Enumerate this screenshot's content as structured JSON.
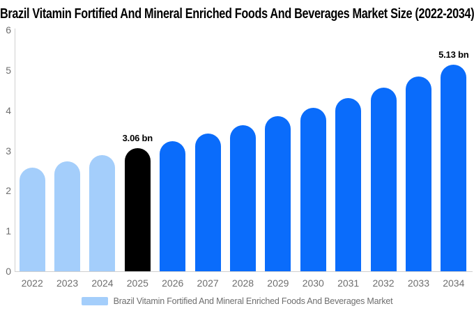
{
  "chart": {
    "title": "Brazil Vitamin Fortified And Mineral Enriched Foods And Beverages Market Size (2022-2034)"
  },
  "legend": {
    "label": "Brazil Vitamin Fortified And Mineral Enriched Foods And Beverages Market",
    "swatch_color": "#A4CEFB"
  },
  "chart_data": {
    "type": "bar",
    "title": "Brazil Vitamin Fortified And Mineral Enriched Foods And Beverages Market Size (2022-2034)",
    "categories": [
      "2022",
      "2023",
      "2024",
      "2025",
      "2026",
      "2027",
      "2028",
      "2029",
      "2030",
      "2031",
      "2032",
      "2033",
      "2034"
    ],
    "values": [
      2.58,
      2.73,
      2.89,
      3.06,
      3.24,
      3.43,
      3.63,
      3.85,
      4.07,
      4.31,
      4.57,
      4.84,
      5.13
    ],
    "unit": "bn",
    "xlabel": "",
    "ylabel": "",
    "ylim": [
      0,
      6
    ],
    "yticks": [
      0,
      1,
      2,
      3,
      4,
      5,
      6
    ],
    "grid": false,
    "legend_position": "bottom",
    "series_name": "Brazil Vitamin Fortified And Mineral Enriched Foods And Beverages Market",
    "bar_roles": [
      "historical",
      "historical",
      "historical",
      "highlight",
      "forecast",
      "forecast",
      "forecast",
      "forecast",
      "forecast",
      "forecast",
      "forecast",
      "forecast",
      "forecast"
    ],
    "colors": {
      "historical": "#A4CEFB",
      "highlight": "#000000",
      "forecast": "#0A6CFB",
      "axis": "#CFCFCF",
      "tick_text": "#6E6E6E"
    },
    "annotations": [
      {
        "category": "2025",
        "text": "3.06 bn"
      },
      {
        "category": "2034",
        "text": "5.13 bn"
      }
    ]
  }
}
